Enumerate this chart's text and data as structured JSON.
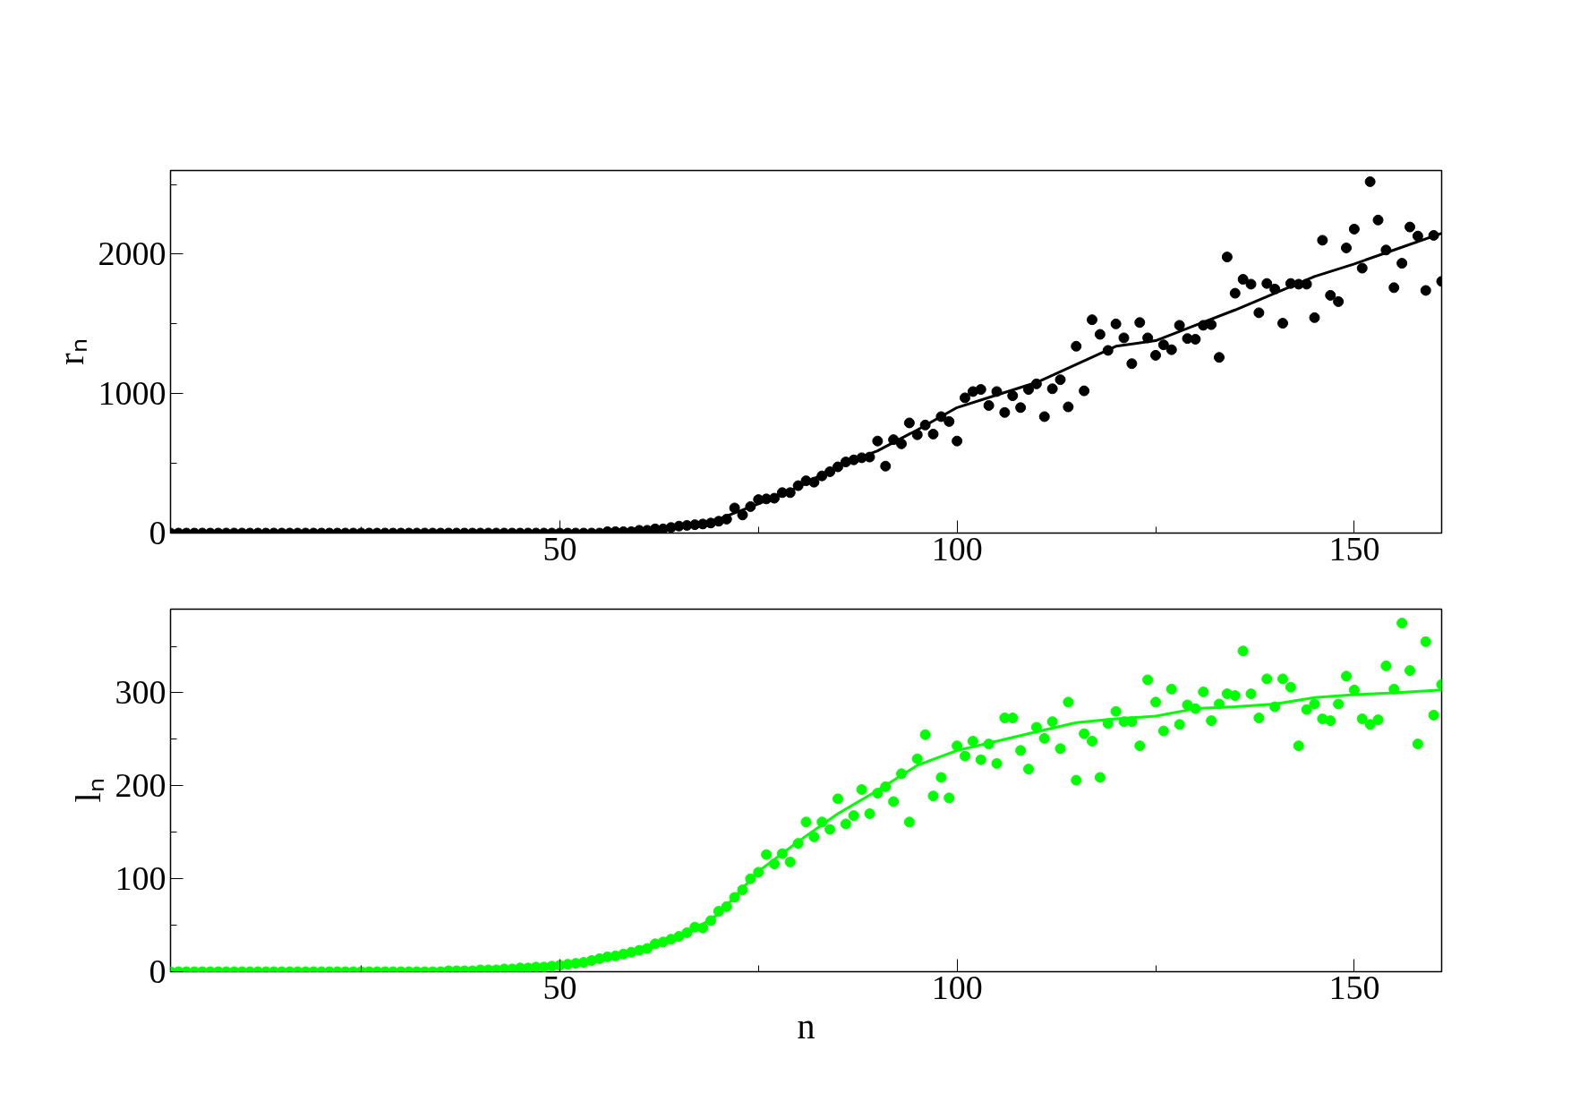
{
  "chart_data": [
    {
      "type": "scatter",
      "ylabel": "rₙ",
      "xlim": [
        1,
        161
      ],
      "ylim": [
        0,
        2600
      ],
      "grid": false,
      "xticks": [
        {
          "value": 25,
          "label": null
        },
        50,
        {
          "value": 75,
          "label": null
        },
        100,
        {
          "value": 125,
          "label": null
        },
        150
      ],
      "yticks": [
        0,
        {
          "value": 500,
          "label": null
        },
        1000,
        {
          "value": 1500,
          "label": null
        },
        2000,
        {
          "value": 2500,
          "label": null
        }
      ],
      "series": [
        {
          "marker": "circle",
          "color": "#000000",
          "x": [
            1,
            2,
            3,
            4,
            5,
            6,
            7,
            8,
            9,
            10,
            11,
            12,
            13,
            14,
            15,
            16,
            17,
            18,
            19,
            20,
            21,
            22,
            23,
            24,
            25,
            26,
            27,
            28,
            29,
            30,
            31,
            32,
            33,
            34,
            35,
            36,
            37,
            38,
            39,
            40,
            41,
            42,
            43,
            44,
            45,
            46,
            47,
            48,
            49,
            50,
            51,
            52,
            53,
            54,
            55,
            56,
            57,
            58,
            59,
            60,
            61,
            62,
            63,
            64,
            65,
            66,
            67,
            68,
            69,
            70,
            71,
            72,
            73,
            74,
            75,
            76,
            77,
            78,
            79,
            80,
            81,
            82,
            83,
            84,
            85,
            86,
            87,
            88,
            89,
            90,
            91,
            92,
            93,
            94,
            95,
            96,
            97,
            98,
            99,
            100,
            101,
            102,
            103,
            104,
            105,
            106,
            107,
            108,
            109,
            110,
            111,
            112,
            113,
            114,
            115,
            116,
            117,
            118,
            119,
            120,
            121,
            122,
            123,
            124,
            125,
            126,
            127,
            128,
            129,
            130,
            131,
            132,
            133,
            134,
            135,
            136,
            137,
            138,
            139,
            140,
            141,
            142,
            143,
            144,
            145,
            146,
            147,
            148,
            149,
            150,
            151,
            152,
            153,
            154,
            155,
            156,
            157,
            158,
            159,
            160,
            161
          ],
          "values": [
            0,
            0,
            0,
            0,
            0,
            0,
            0,
            0,
            0,
            0,
            0,
            0,
            0,
            0,
            0,
            0,
            0,
            0,
            0,
            0,
            0,
            0,
            0,
            0,
            0,
            0,
            0,
            0,
            0,
            0,
            0,
            0,
            0,
            0,
            0,
            0,
            0,
            0,
            0,
            0,
            0,
            0,
            0,
            0,
            0,
            0,
            0,
            0,
            0,
            0,
            0,
            0,
            0,
            0,
            0,
            10,
            10,
            10,
            10,
            20,
            20,
            30,
            30,
            40,
            50,
            55,
            60,
            65,
            72,
            85,
            100,
            180,
            130,
            190,
            240,
            245,
            250,
            290,
            290,
            340,
            375,
            365,
            410,
            440,
            475,
            510,
            525,
            540,
            545,
            660,
            480,
            670,
            640,
            790,
            705,
            775,
            710,
            835,
            800,
            660,
            970,
            1015,
            1030,
            915,
            1015,
            865,
            985,
            900,
            1030,
            1070,
            835,
            1035,
            1100,
            905,
            1340,
            1020,
            1530,
            1425,
            1310,
            1500,
            1400,
            1215,
            1510,
            1400,
            1275,
            1350,
            1315,
            1490,
            1395,
            1390,
            1490,
            1495,
            1260,
            1980,
            1720,
            1820,
            1785,
            1580,
            1790,
            1750,
            1505,
            1790,
            1785,
            1785,
            1545,
            2100,
            1705,
            1660,
            2045,
            2180,
            1900,
            2520,
            2245,
            2030,
            1760,
            1935,
            2195,
            2130,
            1740,
            2135,
            1805
          ]
        },
        {
          "type": "line",
          "color": "#000000",
          "x": [
            1,
            60,
            65,
            70,
            75,
            80,
            85,
            90,
            95,
            100,
            105,
            110,
            115,
            120,
            125,
            130,
            135,
            140,
            145,
            150,
            155,
            161
          ],
          "values": [
            0,
            10,
            40,
            100,
            210,
            330,
            480,
            590,
            740,
            900,
            990,
            1080,
            1210,
            1340,
            1380,
            1490,
            1600,
            1720,
            1840,
            1930,
            2030,
            2150
          ]
        }
      ]
    },
    {
      "type": "scatter",
      "ylabel": "lₙ",
      "xlabel": "n",
      "xlim": [
        1,
        161
      ],
      "ylim": [
        0,
        390
      ],
      "grid": false,
      "xticks": [
        {
          "value": 25,
          "label": null
        },
        50,
        {
          "value": 75,
          "label": null
        },
        100,
        {
          "value": 125,
          "label": null
        },
        150
      ],
      "yticks": [
        0,
        {
          "value": 50,
          "label": null
        },
        100,
        {
          "value": 150,
          "label": null
        },
        200,
        {
          "value": 250,
          "label": null
        },
        300,
        {
          "value": 350,
          "label": null
        }
      ],
      "series": [
        {
          "marker": "circle",
          "color": "#00ff00",
          "x": [
            1,
            2,
            3,
            4,
            5,
            6,
            7,
            8,
            9,
            10,
            11,
            12,
            13,
            14,
            15,
            16,
            17,
            18,
            19,
            20,
            21,
            22,
            23,
            24,
            25,
            26,
            27,
            28,
            29,
            30,
            31,
            32,
            33,
            34,
            35,
            36,
            37,
            38,
            39,
            40,
            41,
            42,
            43,
            44,
            45,
            46,
            47,
            48,
            49,
            50,
            51,
            52,
            53,
            54,
            55,
            56,
            57,
            58,
            59,
            60,
            61,
            62,
            63,
            64,
            65,
            66,
            67,
            68,
            69,
            70,
            71,
            72,
            73,
            74,
            75,
            76,
            77,
            78,
            79,
            80,
            81,
            82,
            83,
            84,
            85,
            86,
            87,
            88,
            89,
            90,
            91,
            92,
            93,
            94,
            95,
            96,
            97,
            98,
            99,
            100,
            101,
            102,
            103,
            104,
            105,
            106,
            107,
            108,
            109,
            110,
            111,
            112,
            113,
            114,
            115,
            116,
            117,
            118,
            119,
            120,
            121,
            122,
            123,
            124,
            125,
            126,
            127,
            128,
            129,
            130,
            131,
            132,
            133,
            134,
            135,
            136,
            137,
            138,
            139,
            140,
            141,
            142,
            143,
            144,
            145,
            146,
            147,
            148,
            149,
            150,
            151,
            152,
            153,
            154,
            155,
            156,
            157,
            158,
            159,
            160,
            161
          ],
          "values": [
            0,
            0,
            0,
            0,
            0,
            0,
            0,
            0,
            0,
            0,
            0,
            0,
            0,
            0,
            0,
            0,
            0,
            0,
            0,
            0,
            0,
            0,
            0,
            0,
            0,
            0,
            0,
            0,
            0,
            0,
            0,
            0,
            0,
            0,
            0,
            1,
            1,
            1,
            1,
            2,
            2,
            2,
            3,
            3,
            4,
            4,
            5,
            5,
            6,
            7,
            8,
            9,
            10,
            12,
            14,
            16,
            17,
            19,
            21,
            23,
            25,
            30,
            32,
            35,
            38,
            42,
            48,
            47,
            55,
            65,
            70,
            80,
            88,
            100,
            107,
            126,
            116,
            127,
            118,
            138,
            161,
            145,
            161,
            153,
            186,
            159,
            168,
            196,
            170,
            192,
            199,
            183,
            213,
            161,
            229,
            255,
            189,
            209,
            187,
            243,
            232,
            248,
            228,
            245,
            224,
            273,
            273,
            238,
            218,
            263,
            251,
            269,
            240,
            290,
            206,
            256,
            248,
            209,
            267,
            280,
            269,
            269,
            243,
            314,
            290,
            259,
            304,
            266,
            287,
            283,
            301,
            270,
            288,
            299,
            297,
            345,
            299,
            273,
            315,
            285,
            315,
            306,
            243,
            282,
            288,
            272,
            270,
            288,
            318,
            303,
            272,
            266,
            271,
            329,
            304,
            375,
            324,
            245,
            355,
            276,
            309
          ]
        },
        {
          "type": "line",
          "color": "#00ff00",
          "x": [
            1,
            40,
            50,
            55,
            60,
            65,
            70,
            75,
            80,
            85,
            90,
            95,
            100,
            105,
            110,
            115,
            120,
            125,
            130,
            135,
            140,
            145,
            150,
            155,
            161
          ],
          "values": [
            0,
            2,
            6,
            12,
            22,
            35,
            62,
            108,
            140,
            170,
            195,
            222,
            238,
            248,
            258,
            268,
            272,
            275,
            283,
            285,
            288,
            295,
            298,
            300,
            303
          ]
        }
      ]
    }
  ]
}
